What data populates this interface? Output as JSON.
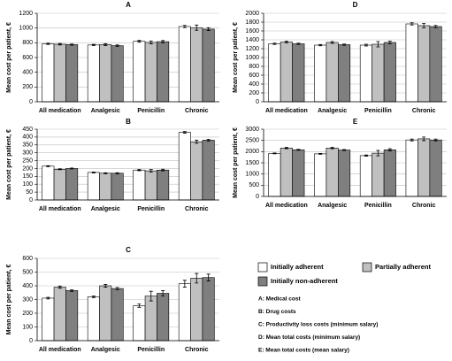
{
  "legend": {
    "series": [
      {
        "name": "Initially adherent",
        "color": "#ffffff"
      },
      {
        "name": "Partially adherent",
        "color": "#c0c0c0"
      },
      {
        "name": "Initially non-adherent",
        "color": "#7f7f7f"
      }
    ],
    "notes": [
      "A: Medical cost",
      "B: Drug costs",
      "C: Productivity loss costs (minimum salary)",
      "D: Mean total costs (minimum salary)",
      "E: Mean total costs (mean salary)"
    ]
  },
  "chart_data": [
    {
      "type": "bar",
      "title": "A",
      "y_label": "Mean cost per patient, €",
      "categories": [
        "All medication",
        "Analgesic",
        "Penicillin",
        "Chronic"
      ],
      "series": [
        {
          "values": [
            785,
            770,
            820,
            1020
          ],
          "errors": [
            8,
            8,
            12,
            15
          ]
        },
        {
          "values": [
            780,
            775,
            805,
            1005
          ],
          "errors": [
            10,
            12,
            20,
            35
          ]
        },
        {
          "values": [
            775,
            760,
            815,
            985
          ],
          "errors": [
            8,
            10,
            15,
            20
          ]
        }
      ],
      "ylim": [
        0,
        1200
      ],
      "yticks": [
        0,
        200,
        400,
        600,
        800,
        1000,
        1200
      ],
      "grid": true
    },
    {
      "type": "bar",
      "title": "B",
      "y_label": "Mean cost per patient, €",
      "categories": [
        "All medication",
        "Analgesic",
        "Penicillin",
        "Chronic"
      ],
      "series": [
        {
          "values": [
            215,
            175,
            190,
            430
          ],
          "errors": [
            3,
            3,
            4,
            5
          ]
        },
        {
          "values": [
            195,
            170,
            185,
            370
          ],
          "errors": [
            3,
            3,
            8,
            10
          ]
        },
        {
          "values": [
            200,
            170,
            190,
            380
          ],
          "errors": [
            3,
            3,
            5,
            6
          ]
        }
      ],
      "ylim": [
        0,
        450
      ],
      "yticks": [
        0,
        50,
        100,
        150,
        200,
        250,
        300,
        350,
        400,
        450
      ],
      "grid": true
    },
    {
      "type": "bar",
      "title": "C",
      "y_label": "Mean cost per patient, €",
      "categories": [
        "All medication",
        "Analgesic",
        "Penicillin",
        "Chronic"
      ],
      "series": [
        {
          "values": [
            310,
            320,
            255,
            415
          ],
          "errors": [
            6,
            6,
            12,
            25
          ]
        },
        {
          "values": [
            390,
            400,
            325,
            455
          ],
          "errors": [
            8,
            10,
            35,
            35
          ]
        },
        {
          "values": [
            365,
            380,
            345,
            460
          ],
          "errors": [
            6,
            8,
            20,
            25
          ]
        }
      ],
      "ylim": [
        0,
        600
      ],
      "yticks": [
        0,
        100,
        200,
        300,
        400,
        500,
        600
      ],
      "grid": true
    },
    {
      "type": "bar",
      "title": "D",
      "y_label": "Mean cost per patient, €",
      "categories": [
        "All medication",
        "Analgesic",
        "Penicillin",
        "Chronic"
      ],
      "series": [
        {
          "values": [
            1310,
            1280,
            1280,
            1760
          ],
          "errors": [
            15,
            15,
            20,
            25
          ]
        },
        {
          "values": [
            1350,
            1340,
            1300,
            1720
          ],
          "errors": [
            20,
            20,
            60,
            50
          ]
        },
        {
          "values": [
            1310,
            1290,
            1340,
            1700
          ],
          "errors": [
            15,
            15,
            30,
            25
          ]
        }
      ],
      "ylim": [
        0,
        2000
      ],
      "yticks": [
        0,
        200,
        400,
        600,
        800,
        1000,
        1200,
        1400,
        1600,
        1800,
        2000
      ],
      "grid": true
    },
    {
      "type": "bar",
      "title": "E",
      "y_label": "Mean cost per patient, €",
      "categories": [
        "All medication",
        "Analgesic",
        "Penicillin",
        "Chronic"
      ],
      "series": [
        {
          "values": [
            1920,
            1900,
            1820,
            2520
          ],
          "errors": [
            20,
            20,
            30,
            40
          ]
        },
        {
          "values": [
            2160,
            2160,
            1930,
            2570
          ],
          "errors": [
            30,
            30,
            120,
            80
          ]
        },
        {
          "values": [
            2080,
            2070,
            2080,
            2520
          ],
          "errors": [
            20,
            20,
            50,
            40
          ]
        }
      ],
      "ylim": [
        0,
        3000
      ],
      "yticks": [
        0,
        500,
        1000,
        1500,
        2000,
        2500,
        3000
      ],
      "grid": true
    }
  ]
}
